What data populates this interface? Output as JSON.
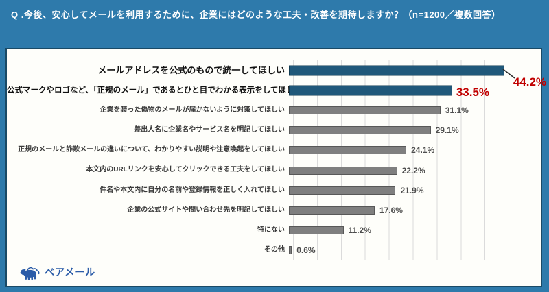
{
  "header": {
    "title": "Q .今後、安心してメールを利用するために、企業にはどのような工夫・改善を期待しますか？（n=1200／複数回答）"
  },
  "logo": {
    "text": "ベアメール"
  },
  "colors": {
    "background": "#2E7AAB",
    "panel_background": "#FEFEFA",
    "panel_border": "#1A4A66",
    "bar_highlight": "#20587A",
    "bar_highlight_border": "#123C52",
    "bar_default": "#7F7F7F",
    "bar_default_border": "#585858",
    "value_highlight": "#C00000",
    "value_default": "#4D4D4D",
    "gridline": "#DBDBDB",
    "header_text": "#FFFFFF",
    "logo_color": "#2B5CA8"
  },
  "chart_data": {
    "type": "bar",
    "orientation": "horizontal",
    "title": "",
    "xlabel": "",
    "ylabel": "",
    "xlim": [
      0,
      50
    ],
    "gridline_step": 5,
    "grid": true,
    "unit": "%",
    "legend": false,
    "categories": [
      "メールアドレスを公式のもので統一してほしい",
      "公式マークやロゴなど、「正規のメール」であるとひと目でわかる表示をしてほしい",
      "企業を装った偽物のメールが届かないように対策してほしい",
      "差出人名に企業名やサービス名を明記してほしい",
      "正規のメールと詐欺メールの違いについて、わかりやすい説明や注意喚起をしてほしい",
      "本文内のURLリンクを安心してクリックできる工夫をしてほしい",
      "件名や本文内に自分の名前や登録情報を正しく入れてほしい",
      "企業の公式サイトや問い合わせ先を明記してほしい",
      "特にない",
      "その他"
    ],
    "values": [
      44.2,
      33.5,
      31.1,
      29.1,
      24.1,
      22.2,
      21.9,
      17.6,
      11.2,
      0.6
    ],
    "value_labels": [
      "44.2%",
      "33.5%",
      "31.1%",
      "29.1%",
      "24.1%",
      "22.2%",
      "21.9%",
      "17.6%",
      "11.2%",
      "0.6%"
    ],
    "highlighted_indices": [
      0,
      1
    ]
  }
}
